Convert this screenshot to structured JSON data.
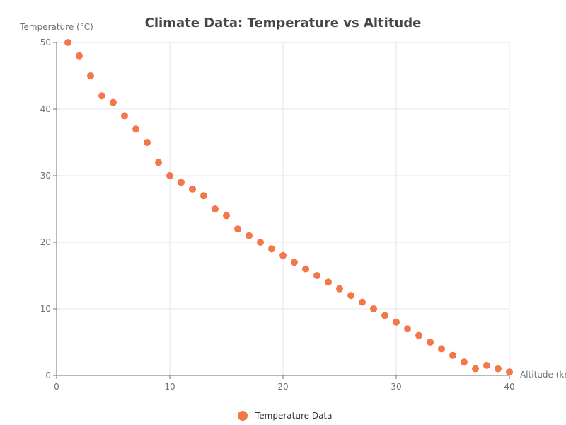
{
  "chart_data": {
    "type": "scatter",
    "title": "Climate Data: Temperature vs Altitude",
    "xlabel": "Altitude (km)",
    "ylabel": "Temperature (°C)",
    "xlim": [
      0,
      40
    ],
    "ylim": [
      0,
      50
    ],
    "x_ticks": [
      0,
      10,
      20,
      30,
      40
    ],
    "y_ticks": [
      0,
      10,
      20,
      30,
      40,
      50
    ],
    "grid": true,
    "legend_position": "bottom-center",
    "series": [
      {
        "name": "Temperature Data",
        "color": "#f4774a",
        "points": [
          [
            1,
            50
          ],
          [
            2,
            48
          ],
          [
            3,
            45
          ],
          [
            4,
            42
          ],
          [
            5,
            41
          ],
          [
            6,
            39
          ],
          [
            7,
            37
          ],
          [
            8,
            35
          ],
          [
            9,
            32
          ],
          [
            10,
            30
          ],
          [
            11,
            29
          ],
          [
            12,
            28
          ],
          [
            13,
            27
          ],
          [
            14,
            25
          ],
          [
            15,
            24
          ],
          [
            16,
            22
          ],
          [
            17,
            21
          ],
          [
            18,
            20
          ],
          [
            19,
            19
          ],
          [
            20,
            18
          ],
          [
            21,
            17
          ],
          [
            22,
            16
          ],
          [
            23,
            15
          ],
          [
            24,
            14
          ],
          [
            25,
            13
          ],
          [
            26,
            12
          ],
          [
            27,
            11
          ],
          [
            28,
            10
          ],
          [
            29,
            9
          ],
          [
            30,
            8
          ],
          [
            31,
            7
          ],
          [
            32,
            6
          ],
          [
            33,
            5
          ],
          [
            34,
            4
          ],
          [
            35,
            3
          ],
          [
            36,
            2
          ],
          [
            37,
            1
          ],
          [
            38,
            1.5
          ],
          [
            39,
            1
          ],
          [
            40,
            0.5
          ]
        ]
      }
    ]
  }
}
